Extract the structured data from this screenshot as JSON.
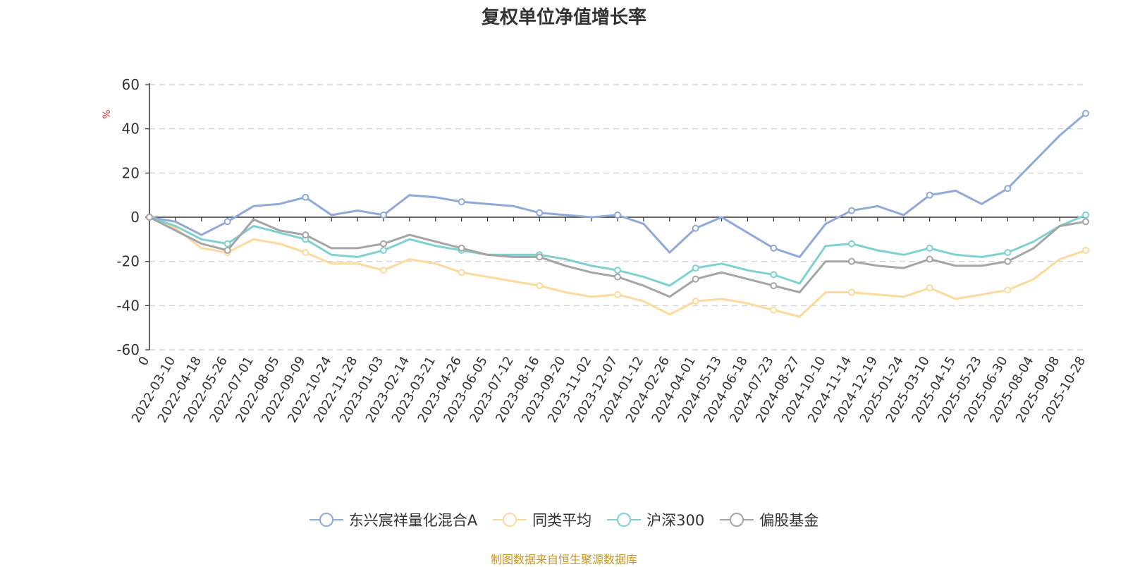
{
  "title": "复权单位净值增长率",
  "source_note": "制图数据来自恒生聚源数据库",
  "chart_data": {
    "type": "line",
    "title": "复权单位净值增长率",
    "ylabel": "%",
    "ylim": [
      -60,
      60
    ],
    "yticks": [
      60,
      40,
      20,
      0,
      -20,
      -40,
      -60
    ],
    "grid": true,
    "legend_position": "bottom",
    "categories": [
      "0",
      "2022-03-10",
      "2022-04-18",
      "2022-05-26",
      "2022-07-01",
      "2022-08-05",
      "2022-09-09",
      "2022-10-24",
      "2022-11-28",
      "2023-01-03",
      "2023-02-14",
      "2023-03-21",
      "2023-04-26",
      "2023-06-05",
      "2023-07-12",
      "2023-08-16",
      "2023-09-20",
      "2023-11-02",
      "2023-12-07",
      "2024-01-12",
      "2024-02-26",
      "2024-04-01",
      "2024-05-13",
      "2024-06-18",
      "2024-07-23",
      "2024-08-27",
      "2024-10-10",
      "2024-11-14",
      "2024-12-19",
      "2025-01-24",
      "2025-03-10",
      "2025-04-15",
      "2025-05-23",
      "2025-06-30",
      "2025-08-04",
      "2025-09-08",
      "2025-10-28"
    ],
    "series": [
      {
        "name": "东兴宸祥量化混合A",
        "color": "#8eaadb",
        "values": [
          0,
          -2,
          -8,
          -2,
          5,
          6,
          9,
          1,
          3,
          1,
          10,
          9,
          7,
          6,
          5,
          2,
          1,
          0,
          1,
          -3,
          -16,
          -5,
          0,
          -7,
          -14,
          -18,
          -3,
          3,
          5,
          1,
          10,
          12,
          6,
          13,
          25,
          37,
          47
        ]
      },
      {
        "name": "同类平均",
        "color": "#fdd99b",
        "values": [
          0,
          -5,
          -14,
          -16,
          -10,
          -12,
          -16,
          -21,
          -21,
          -24,
          -19,
          -21,
          -25,
          -27,
          -29,
          -31,
          -34,
          -36,
          -35,
          -38,
          -44,
          -38,
          -37,
          -39,
          -42,
          -45,
          -34,
          -34,
          -35,
          -36,
          -32,
          -37,
          -35,
          -33,
          -28,
          -19,
          -15
        ]
      },
      {
        "name": "沪深300",
        "color": "#7fd1d1",
        "values": [
          0,
          -4,
          -10,
          -12,
          -4,
          -7,
          -10,
          -17,
          -18,
          -15,
          -10,
          -13,
          -15,
          -17,
          -17,
          -17,
          -19,
          -22,
          -24,
          -27,
          -31,
          -23,
          -21,
          -24,
          -26,
          -30,
          -13,
          -12,
          -15,
          -17,
          -14,
          -17,
          -18,
          -16,
          -11,
          -4,
          1
        ]
      },
      {
        "name": "偏股基金",
        "color": "#a5a5a5",
        "values": [
          0,
          -6,
          -12,
          -15,
          -1,
          -6,
          -8,
          -14,
          -14,
          -12,
          -8,
          -11,
          -14,
          -17,
          -18,
          -18,
          -22,
          -25,
          -27,
          -31,
          -36,
          -28,
          -25,
          -28,
          -31,
          -34,
          -20,
          -20,
          -22,
          -23,
          -19,
          -22,
          -22,
          -20,
          -14,
          -4,
          -2
        ]
      }
    ]
  }
}
